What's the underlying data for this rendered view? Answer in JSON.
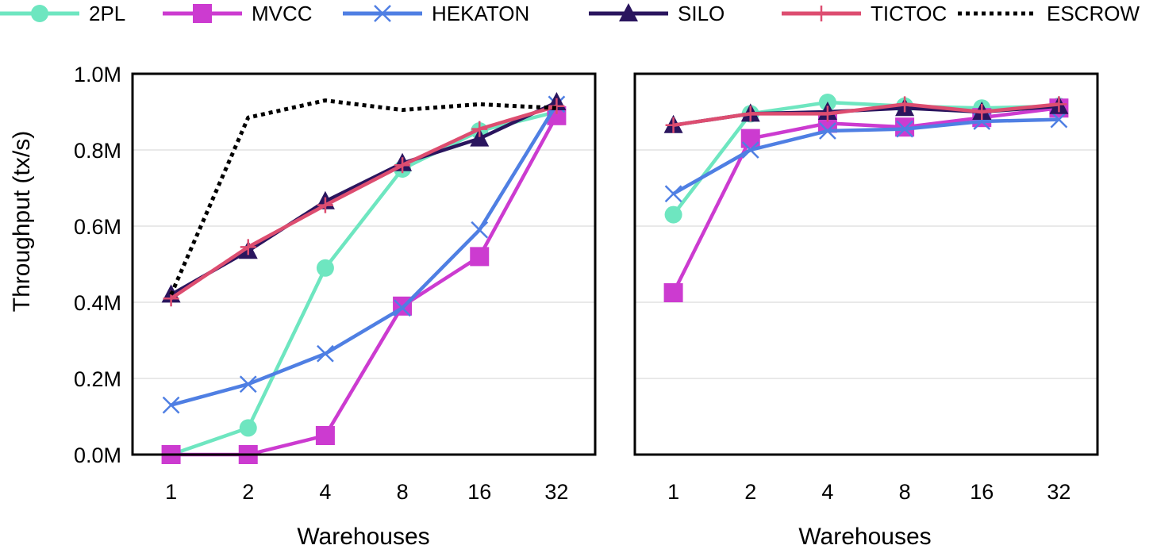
{
  "chart_data": {
    "type": "line",
    "ylabel": "Throughput (tx/s)",
    "legend_position": "top",
    "legend": [
      {
        "name": "2PL",
        "color": "#6ee6c0",
        "marker": "circle",
        "dashed": false
      },
      {
        "name": "MVCC",
        "color": "#cc3bd0",
        "marker": "square",
        "dashed": false
      },
      {
        "name": "HEKATON",
        "color": "#4f7fe3",
        "marker": "x",
        "dashed": false
      },
      {
        "name": "SILO",
        "color": "#2a155e",
        "marker": "triangle",
        "dashed": false
      },
      {
        "name": "TICTOC",
        "color": "#dd4d70",
        "marker": "plus",
        "dashed": false
      },
      {
        "name": "ESCROW",
        "color": "#000000",
        "marker": "none",
        "dashed": true
      }
    ],
    "y_ticks": [
      "0.0M",
      "0.2M",
      "0.4M",
      "0.6M",
      "0.8M",
      "1.0M"
    ],
    "ylim": [
      0,
      1.0
    ],
    "y_unit": "M tx/s",
    "grid": true,
    "panels": [
      {
        "xlabel": "Warehouses",
        "categories": [
          "1",
          "2",
          "4",
          "8",
          "16",
          "32"
        ],
        "series": [
          {
            "name": "2PL",
            "values": [
              0.0,
              0.07,
              0.49,
              0.75,
              0.85,
              0.9
            ]
          },
          {
            "name": "MVCC",
            "values": [
              0.0,
              0.0,
              0.05,
              0.39,
              0.52,
              0.89
            ]
          },
          {
            "name": "HEKATON",
            "values": [
              0.13,
              0.185,
              0.265,
              0.385,
              0.59,
              0.92
            ]
          },
          {
            "name": "SILO",
            "values": [
              0.42,
              0.535,
              0.665,
              0.765,
              0.83,
              0.925
            ]
          },
          {
            "name": "TICTOC",
            "values": [
              0.41,
              0.545,
              0.655,
              0.76,
              0.855,
              0.915
            ]
          },
          {
            "name": "ESCROW",
            "values": [
              0.42,
              0.885,
              0.93,
              0.905,
              0.92,
              0.91
            ]
          }
        ]
      },
      {
        "xlabel": "Warehouses",
        "categories": [
          "1",
          "2",
          "4",
          "8",
          "16",
          "32"
        ],
        "series": [
          {
            "name": "2PL",
            "values": [
              0.63,
              0.895,
              0.925,
              0.915,
              0.91,
              0.915
            ]
          },
          {
            "name": "MVCC",
            "values": [
              0.425,
              0.83,
              0.87,
              0.86,
              0.885,
              0.91
            ]
          },
          {
            "name": "HEKATON",
            "values": [
              0.685,
              0.8,
              0.85,
              0.855,
              0.875,
              0.88
            ]
          },
          {
            "name": "SILO",
            "values": [
              0.865,
              0.895,
              0.9,
              0.91,
              0.9,
              0.915
            ]
          },
          {
            "name": "TICTOC",
            "values": [
              0.865,
              0.895,
              0.895,
              0.92,
              0.9,
              0.92
            ]
          },
          {
            "name": "ESCROW",
            "values": []
          }
        ]
      }
    ]
  }
}
